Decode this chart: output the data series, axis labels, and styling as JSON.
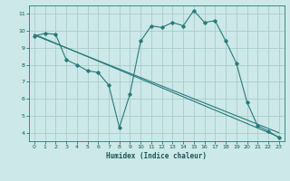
{
  "title": "",
  "xlabel": "Humidex (Indice chaleur)",
  "bg_color": "#cce8e8",
  "grid_color": "#aacccc",
  "line_color": "#2a7a7a",
  "xlim": [
    -0.5,
    23.5
  ],
  "ylim": [
    3.5,
    11.5
  ],
  "xticks": [
    0,
    1,
    2,
    3,
    4,
    5,
    6,
    7,
    8,
    9,
    10,
    11,
    12,
    13,
    14,
    15,
    16,
    17,
    18,
    19,
    20,
    21,
    22,
    23
  ],
  "yticks": [
    4,
    5,
    6,
    7,
    8,
    9,
    10,
    11
  ],
  "line1_x": [
    0,
    1,
    2,
    3,
    4,
    5,
    6,
    7,
    8,
    9,
    10,
    11,
    12,
    13,
    14,
    15,
    16,
    17,
    18,
    19,
    20,
    21,
    22,
    23
  ],
  "line1_y": [
    9.7,
    9.85,
    9.8,
    8.3,
    8.0,
    7.65,
    7.55,
    6.8,
    4.3,
    6.3,
    9.4,
    10.3,
    10.2,
    10.5,
    10.3,
    11.2,
    10.5,
    10.6,
    9.4,
    8.1,
    5.8,
    4.4,
    4.1,
    3.7
  ],
  "line2_x": [
    0,
    23
  ],
  "line2_y": [
    9.8,
    3.75
  ],
  "line3_x": [
    0,
    23
  ],
  "line3_y": [
    9.75,
    4.0
  ]
}
